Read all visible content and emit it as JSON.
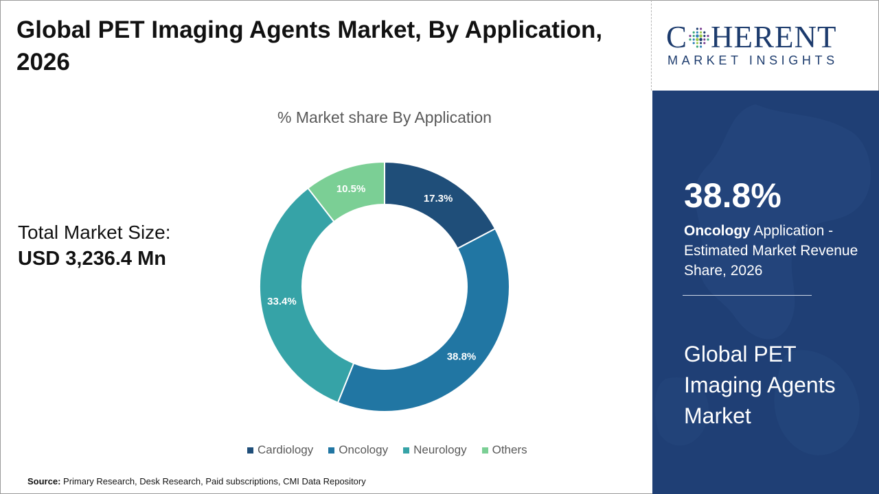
{
  "title": "Global PET Imaging Agents Market, By Application, 2026",
  "total_market": {
    "label": "Total Market Size:",
    "value": "USD 3,236.4 Mn"
  },
  "chart_data": {
    "type": "pie",
    "title": "% Market share By Application",
    "categories": [
      "Cardiology",
      "Oncology",
      "Neurology",
      "Others"
    ],
    "values": [
      17.3,
      38.8,
      33.4,
      10.5
    ],
    "value_labels": [
      "17.3%",
      "38.8%",
      "33.4%",
      "10.5%"
    ],
    "colors": [
      "#1f4e79",
      "#2176a3",
      "#36a3a7",
      "#7bcf95"
    ],
    "donut": true,
    "legend_position": "bottom"
  },
  "source": {
    "label": "Source:",
    "text": "Primary Research, Desk Research, Paid subscriptions, CMI Data Repository"
  },
  "logo": {
    "first_letter": "C",
    "rest": "HERENT",
    "subtitle": "MARKET INSIGHTS"
  },
  "highlight": {
    "percent": "38.8%",
    "segment": "Oncology",
    "description": "Application - Estimated Market Revenue Share, 2026"
  },
  "panel_title": "Global PET Imaging Agents Market",
  "colors": {
    "panel_bg": "#1f3f75",
    "brand": "#1c3b6d"
  }
}
